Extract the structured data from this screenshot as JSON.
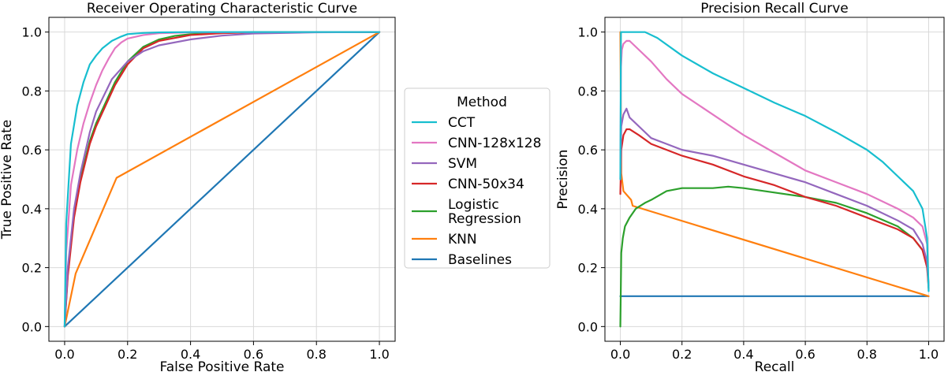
{
  "chart_data": [
    {
      "type": "line",
      "title": "Receiver Operating Characteristic Curve",
      "xlabel": "False Positive Rate",
      "ylabel": "True Positive Rate",
      "xlim": [
        0,
        1
      ],
      "ylim": [
        0,
        1
      ],
      "xticks": [
        "0.0",
        "0.2",
        "0.4",
        "0.6",
        "0.8",
        "1.0"
      ],
      "yticks": [
        "0.0",
        "0.2",
        "0.4",
        "0.6",
        "0.8",
        "1.0"
      ],
      "grid": true,
      "series": [
        {
          "name": "CCT",
          "color": "#17becf",
          "x": [
            0,
            0.005,
            0.02,
            0.04,
            0.06,
            0.08,
            0.1,
            0.12,
            0.15,
            0.18,
            0.2,
            0.25,
            0.3,
            0.4,
            0.6,
            1.0
          ],
          "y": [
            0,
            0.35,
            0.62,
            0.75,
            0.83,
            0.89,
            0.92,
            0.945,
            0.97,
            0.985,
            0.993,
            0.997,
            0.999,
            1.0,
            1.0,
            1.0
          ]
        },
        {
          "name": "CNN-128x128",
          "color": "#e377c2",
          "x": [
            0,
            0.005,
            0.02,
            0.04,
            0.06,
            0.08,
            0.1,
            0.12,
            0.14,
            0.16,
            0.18,
            0.2,
            0.25,
            0.3,
            0.4,
            1.0
          ],
          "y": [
            0,
            0.25,
            0.48,
            0.6,
            0.69,
            0.76,
            0.82,
            0.87,
            0.91,
            0.945,
            0.965,
            0.978,
            0.99,
            0.996,
            0.999,
            1.0
          ]
        },
        {
          "name": "SVM",
          "color": "#9467bd",
          "x": [
            0,
            0.01,
            0.03,
            0.05,
            0.08,
            0.1,
            0.15,
            0.2,
            0.25,
            0.3,
            0.4,
            0.5,
            0.6,
            0.8,
            1.0
          ],
          "y": [
            0,
            0.2,
            0.4,
            0.52,
            0.66,
            0.73,
            0.84,
            0.9,
            0.935,
            0.955,
            0.975,
            0.988,
            0.995,
            0.999,
            1.0
          ]
        },
        {
          "name": "CNN-50x34",
          "color": "#d62728",
          "x": [
            0,
            0.01,
            0.03,
            0.05,
            0.08,
            0.1,
            0.13,
            0.16,
            0.2,
            0.25,
            0.3,
            0.4,
            0.5,
            0.6,
            1.0
          ],
          "y": [
            0,
            0.17,
            0.37,
            0.49,
            0.62,
            0.68,
            0.75,
            0.82,
            0.89,
            0.945,
            0.97,
            0.99,
            0.996,
            0.999,
            1.0
          ]
        },
        {
          "name": "Logistic Regression",
          "color": "#2ca02c",
          "x": [
            0,
            0.01,
            0.03,
            0.05,
            0.08,
            0.1,
            0.13,
            0.16,
            0.2,
            0.25,
            0.3,
            0.35,
            0.4,
            0.5,
            0.6,
            1.0
          ],
          "y": [
            0,
            0.18,
            0.38,
            0.5,
            0.63,
            0.69,
            0.76,
            0.83,
            0.9,
            0.95,
            0.975,
            0.987,
            0.993,
            0.998,
            1.0,
            1.0
          ]
        },
        {
          "name": "KNN",
          "color": "#ff7f0e",
          "x": [
            0,
            0.035,
            0.165,
            1.0
          ],
          "y": [
            0,
            0.18,
            0.505,
            1.0
          ]
        },
        {
          "name": "Baselines",
          "color": "#1f77b4",
          "x": [
            0,
            1.0
          ],
          "y": [
            0,
            1.0
          ]
        }
      ]
    },
    {
      "type": "line",
      "title": "Precision Recall Curve",
      "xlabel": "Recall",
      "ylabel": "Precision",
      "xlim": [
        0,
        1
      ],
      "ylim": [
        0,
        1
      ],
      "xticks": [
        "0.0",
        "0.2",
        "0.4",
        "0.6",
        "0.8",
        "1.0"
      ],
      "yticks": [
        "0.0",
        "0.2",
        "0.4",
        "0.6",
        "0.8",
        "1.0"
      ],
      "grid": true,
      "series": [
        {
          "name": "CCT",
          "color": "#17becf",
          "x": [
            0,
            0.002,
            0.05,
            0.08,
            0.12,
            0.2,
            0.3,
            0.4,
            0.5,
            0.6,
            0.7,
            0.8,
            0.85,
            0.9,
            0.95,
            0.98,
            0.995,
            1.0
          ],
          "y": [
            0.5,
            1.0,
            1.0,
            1.0,
            0.98,
            0.92,
            0.86,
            0.81,
            0.76,
            0.715,
            0.66,
            0.6,
            0.56,
            0.51,
            0.46,
            0.4,
            0.3,
            0.12
          ]
        },
        {
          "name": "CNN-128x128",
          "color": "#e377c2",
          "x": [
            0,
            0.002,
            0.005,
            0.01,
            0.02,
            0.03,
            0.05,
            0.1,
            0.15,
            0.2,
            0.3,
            0.4,
            0.5,
            0.6,
            0.7,
            0.8,
            0.9,
            0.95,
            0.98,
            0.995,
            1.0
          ],
          "y": [
            0.5,
            0.88,
            0.94,
            0.96,
            0.97,
            0.97,
            0.95,
            0.9,
            0.84,
            0.79,
            0.72,
            0.65,
            0.59,
            0.53,
            0.49,
            0.45,
            0.4,
            0.37,
            0.34,
            0.28,
            0.13
          ]
        },
        {
          "name": "SVM",
          "color": "#9467bd",
          "x": [
            0,
            0.003,
            0.01,
            0.02,
            0.03,
            0.06,
            0.1,
            0.15,
            0.2,
            0.3,
            0.4,
            0.5,
            0.6,
            0.7,
            0.8,
            0.9,
            0.95,
            0.98,
            0.995,
            1.0
          ],
          "y": [
            0.5,
            0.68,
            0.72,
            0.74,
            0.71,
            0.68,
            0.64,
            0.62,
            0.6,
            0.58,
            0.55,
            0.52,
            0.49,
            0.45,
            0.41,
            0.36,
            0.33,
            0.28,
            0.22,
            0.14
          ]
        },
        {
          "name": "CNN-50x34",
          "color": "#d62728",
          "x": [
            0,
            0.003,
            0.01,
            0.02,
            0.03,
            0.06,
            0.1,
            0.15,
            0.2,
            0.3,
            0.4,
            0.5,
            0.6,
            0.7,
            0.8,
            0.9,
            0.95,
            0.98,
            0.995,
            1.0
          ],
          "y": [
            0.45,
            0.6,
            0.65,
            0.67,
            0.67,
            0.65,
            0.62,
            0.6,
            0.58,
            0.55,
            0.51,
            0.48,
            0.44,
            0.41,
            0.37,
            0.33,
            0.3,
            0.26,
            0.2,
            0.13
          ]
        },
        {
          "name": "Logistic Regression",
          "color": "#2ca02c",
          "x": [
            0,
            0.003,
            0.008,
            0.015,
            0.03,
            0.05,
            0.08,
            0.1,
            0.15,
            0.2,
            0.3,
            0.35,
            0.4,
            0.5,
            0.6,
            0.7,
            0.8,
            0.9,
            0.95,
            0.98,
            0.995,
            1.0
          ],
          "y": [
            0.0,
            0.25,
            0.3,
            0.34,
            0.37,
            0.4,
            0.42,
            0.43,
            0.46,
            0.47,
            0.47,
            0.475,
            0.47,
            0.455,
            0.44,
            0.42,
            0.385,
            0.34,
            0.3,
            0.26,
            0.21,
            0.14
          ]
        },
        {
          "name": "KNN",
          "color": "#ff7f0e",
          "x": [
            0,
            0.003,
            0.01,
            0.035,
            0.04,
            1.0
          ],
          "y": [
            1.0,
            0.52,
            0.46,
            0.43,
            0.41,
            0.103
          ]
        },
        {
          "name": "Baselines",
          "color": "#1f77b4",
          "x": [
            0,
            1.0
          ],
          "y": [
            0.103,
            0.103
          ]
        }
      ]
    }
  ],
  "legend": {
    "title": "Method",
    "placement": "center between plots",
    "entries": [
      {
        "label": "CCT",
        "color": "#17becf"
      },
      {
        "label": "CNN-128x128",
        "color": "#e377c2"
      },
      {
        "label": "SVM",
        "color": "#9467bd"
      },
      {
        "label": "CNN-50x34",
        "color": "#d62728"
      },
      {
        "label": "Logistic\nRegression",
        "color": "#2ca02c"
      },
      {
        "label": "KNN",
        "color": "#ff7f0e"
      },
      {
        "label": "Baselines",
        "color": "#1f77b4"
      }
    ]
  }
}
